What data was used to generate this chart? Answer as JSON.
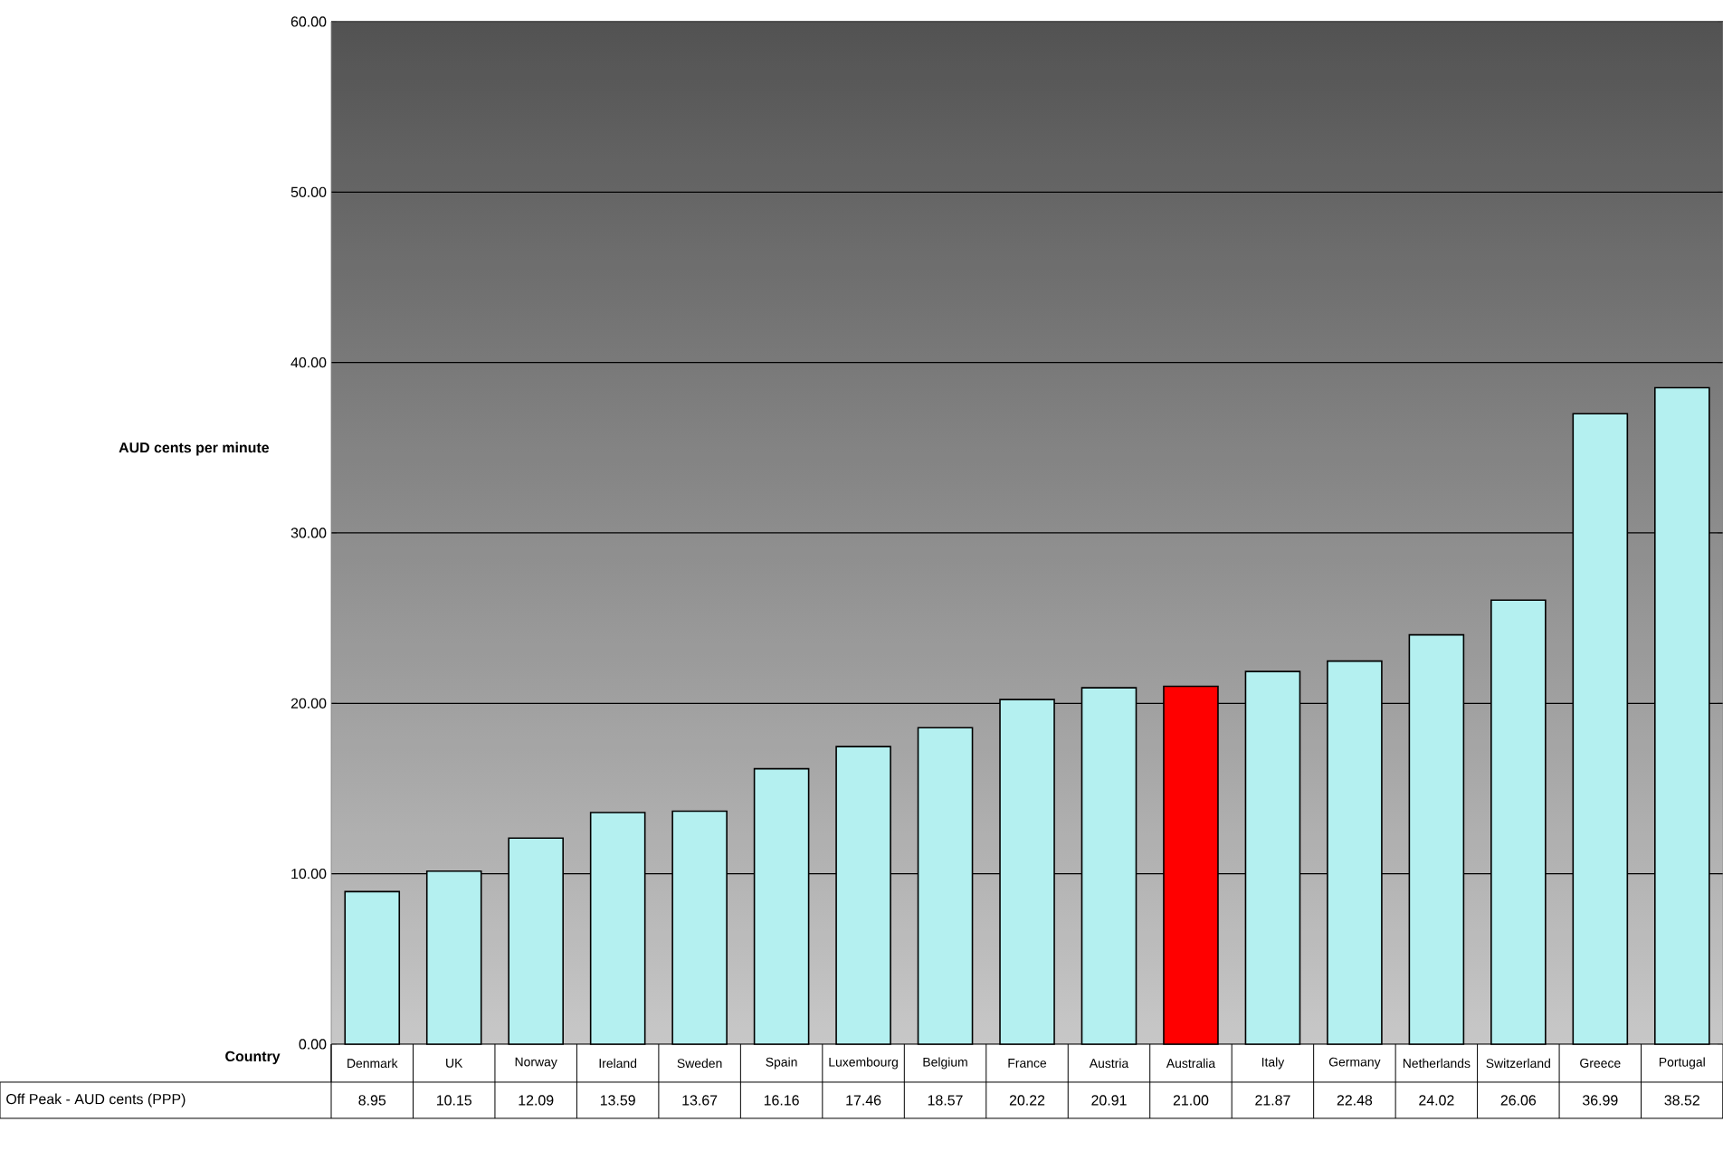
{
  "chart_data": {
    "type": "bar",
    "xlabel": "Country",
    "ylabel": "AUD cents per minute",
    "categories": [
      "Denmark",
      "UK",
      "Norway",
      "Ireland",
      "Sweden",
      "Spain",
      "Luxembourg",
      "Belgium",
      "France",
      "Austria",
      "Australia",
      "Italy",
      "Germany",
      "Netherlands",
      "Switzerland",
      "Greece",
      "Portugal"
    ],
    "series": [
      {
        "name": "Off Peak - AUD cents (PPP)",
        "values": [
          8.95,
          10.15,
          12.09,
          13.59,
          13.67,
          16.16,
          17.46,
          18.57,
          20.22,
          20.91,
          21.0,
          21.87,
          22.48,
          24.02,
          26.06,
          36.99,
          38.52
        ],
        "colors": [
          "#b4f0f0",
          "#b4f0f0",
          "#b4f0f0",
          "#b4f0f0",
          "#b4f0f0",
          "#b4f0f0",
          "#b4f0f0",
          "#b4f0f0",
          "#b4f0f0",
          "#b4f0f0",
          "#ff0000",
          "#b4f0f0",
          "#b4f0f0",
          "#b4f0f0",
          "#b4f0f0",
          "#b4f0f0",
          "#b4f0f0"
        ],
        "value_labels": [
          "8.95",
          "10.15",
          "12.09",
          "13.59",
          "13.67",
          "16.16",
          "17.46",
          "18.57",
          "20.22",
          "20.91",
          "21.00",
          "21.87",
          "22.48",
          "24.02",
          "26.06",
          "36.99",
          "38.52"
        ]
      }
    ],
    "ylim": [
      0,
      60
    ],
    "yticks": [
      {
        "value": 0,
        "label": "0.00"
      },
      {
        "value": 10,
        "label": "10.00"
      },
      {
        "value": 20,
        "label": "20.00"
      },
      {
        "value": 30,
        "label": "30.00"
      },
      {
        "value": 40,
        "label": "40.00"
      },
      {
        "value": 50,
        "label": "50.00"
      },
      {
        "value": 60,
        "label": "60.00"
      }
    ],
    "grid": "y"
  }
}
